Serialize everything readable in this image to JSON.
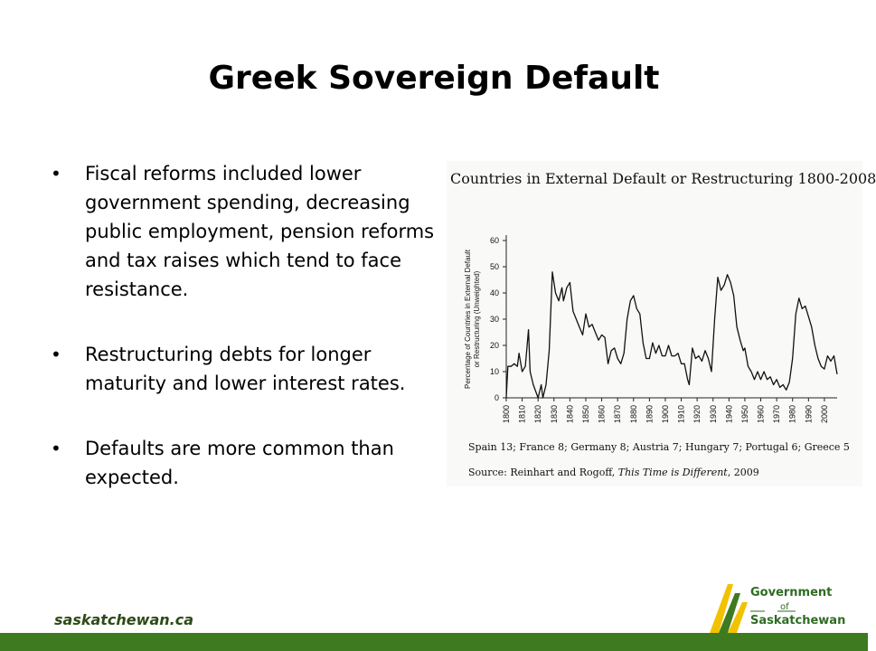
{
  "slide": {
    "title": "Greek Sovereign Default",
    "bullets": [
      "Fiscal reforms included lower government spending, decreasing public employment, pension reforms and tax raises which tend to face resistance.",
      "Restructuring debts for longer maturity and lower interest rates.",
      "Defaults are more common than expected."
    ],
    "footer_url": "saskatchewan.ca",
    "logo": {
      "line1": "Government",
      "line2": "of",
      "line3": "Saskatchewan"
    }
  },
  "colors": {
    "accent_green": "#3e7a1f",
    "logo_yellow": "#f2c200",
    "logo_green": "#2f6b22"
  },
  "chart_data": {
    "type": "line",
    "title": "Countries in External Default or Restructuring 1800-2008",
    "ylabel_line1": "Percentage of Countries in External Default",
    "ylabel_line2": "or Restructuring (Unweighted)",
    "xlabel": "",
    "xlim": [
      1800,
      2008
    ],
    "ylim": [
      0,
      60
    ],
    "yticks": [
      0,
      10,
      20,
      30,
      40,
      50,
      60
    ],
    "xticks": [
      1800,
      1810,
      1820,
      1830,
      1840,
      1850,
      1860,
      1870,
      1880,
      1890,
      1900,
      1910,
      1920,
      1930,
      1940,
      1950,
      1960,
      1970,
      1980,
      1990,
      2000
    ],
    "caption1": "Spain 13; France 8; Germany 8; Austria 7; Hungary 7; Portugal 6; Greece 5",
    "caption2_prefix": "Source: Reinhart and Rogoff, ",
    "caption2_title": "This Time is Different",
    "caption2_suffix": ", 2009",
    "series": [
      {
        "points": [
          [
            1800,
            0
          ],
          [
            1801,
            12
          ],
          [
            1803,
            12
          ],
          [
            1805,
            13
          ],
          [
            1807,
            12
          ],
          [
            1808,
            17
          ],
          [
            1810,
            10
          ],
          [
            1812,
            12
          ],
          [
            1814,
            26
          ],
          [
            1815,
            10
          ],
          [
            1817,
            5
          ],
          [
            1820,
            0
          ],
          [
            1822,
            5
          ],
          [
            1823,
            0
          ],
          [
            1825,
            5
          ],
          [
            1827,
            18
          ],
          [
            1829,
            48
          ],
          [
            1831,
            40
          ],
          [
            1833,
            37
          ],
          [
            1835,
            42
          ],
          [
            1836,
            37
          ],
          [
            1838,
            42
          ],
          [
            1840,
            44
          ],
          [
            1842,
            33
          ],
          [
            1844,
            30
          ],
          [
            1846,
            27
          ],
          [
            1848,
            24
          ],
          [
            1850,
            32
          ],
          [
            1852,
            27
          ],
          [
            1854,
            28
          ],
          [
            1856,
            25
          ],
          [
            1858,
            22
          ],
          [
            1860,
            24
          ],
          [
            1862,
            23
          ],
          [
            1864,
            13
          ],
          [
            1866,
            18
          ],
          [
            1868,
            19
          ],
          [
            1870,
            15
          ],
          [
            1872,
            13
          ],
          [
            1874,
            17
          ],
          [
            1876,
            30
          ],
          [
            1878,
            37
          ],
          [
            1880,
            39
          ],
          [
            1882,
            34
          ],
          [
            1884,
            32
          ],
          [
            1886,
            21
          ],
          [
            1888,
            15
          ],
          [
            1890,
            15
          ],
          [
            1892,
            21
          ],
          [
            1894,
            17
          ],
          [
            1896,
            20
          ],
          [
            1898,
            16
          ],
          [
            1900,
            16
          ],
          [
            1902,
            20
          ],
          [
            1904,
            16
          ],
          [
            1906,
            16
          ],
          [
            1908,
            17
          ],
          [
            1910,
            13
          ],
          [
            1912,
            13
          ],
          [
            1914,
            7
          ],
          [
            1915,
            5
          ],
          [
            1917,
            19
          ],
          [
            1919,
            15
          ],
          [
            1921,
            16
          ],
          [
            1923,
            14
          ],
          [
            1925,
            18
          ],
          [
            1927,
            15
          ],
          [
            1929,
            10
          ],
          [
            1931,
            30
          ],
          [
            1933,
            46
          ],
          [
            1935,
            41
          ],
          [
            1937,
            43
          ],
          [
            1939,
            47
          ],
          [
            1941,
            44
          ],
          [
            1943,
            39
          ],
          [
            1945,
            27
          ],
          [
            1947,
            22
          ],
          [
            1949,
            18
          ],
          [
            1950,
            19
          ],
          [
            1952,
            12
          ],
          [
            1954,
            10
          ],
          [
            1956,
            7
          ],
          [
            1958,
            10
          ],
          [
            1960,
            7
          ],
          [
            1962,
            10
          ],
          [
            1964,
            7
          ],
          [
            1966,
            8
          ],
          [
            1968,
            5
          ],
          [
            1970,
            7
          ],
          [
            1972,
            4
          ],
          [
            1974,
            5
          ],
          [
            1976,
            3
          ],
          [
            1978,
            6
          ],
          [
            1980,
            15
          ],
          [
            1982,
            32
          ],
          [
            1984,
            38
          ],
          [
            1986,
            34
          ],
          [
            1988,
            35
          ],
          [
            1990,
            31
          ],
          [
            1992,
            27
          ],
          [
            1994,
            20
          ],
          [
            1996,
            15
          ],
          [
            1998,
            12
          ],
          [
            2000,
            11
          ],
          [
            2002,
            16
          ],
          [
            2004,
            14
          ],
          [
            2006,
            16
          ],
          [
            2008,
            9
          ]
        ]
      }
    ]
  }
}
